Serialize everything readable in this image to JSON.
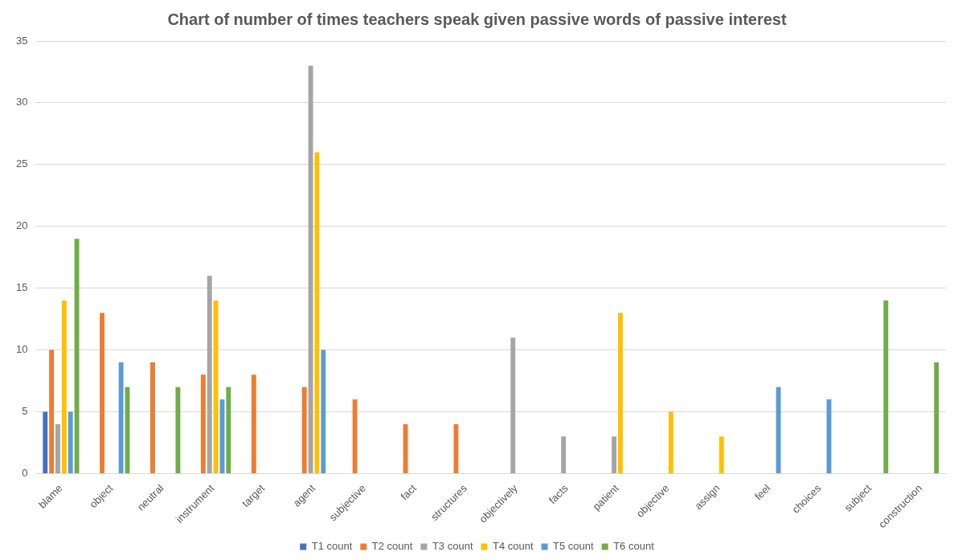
{
  "chart_data": {
    "type": "bar",
    "title": "Chart of number of times teachers speak given passive words of passive interest",
    "categories": [
      "blame",
      "object",
      "neutral",
      "instrument",
      "target",
      "agent",
      "subjective",
      "fact",
      "structures",
      "objectively",
      "facts",
      "patient",
      "objective",
      "assign",
      "feel",
      "choices",
      "subject",
      "construction"
    ],
    "series": [
      {
        "name": "T1 count",
        "color": "#4472c4",
        "values": [
          5,
          null,
          null,
          null,
          null,
          null,
          null,
          null,
          null,
          null,
          null,
          null,
          null,
          null,
          null,
          null,
          null,
          null
        ]
      },
      {
        "name": "T2 count",
        "color": "#ed7d31",
        "values": [
          10,
          13,
          9,
          8,
          8,
          7,
          6,
          4,
          4,
          null,
          null,
          null,
          null,
          null,
          null,
          null,
          null,
          null
        ]
      },
      {
        "name": "T3 count",
        "color": "#a5a5a5",
        "values": [
          4,
          null,
          null,
          16,
          null,
          33,
          null,
          null,
          null,
          11,
          3,
          3,
          null,
          null,
          null,
          null,
          null,
          null
        ]
      },
      {
        "name": "T4 count",
        "color": "#ffc000",
        "values": [
          14,
          null,
          null,
          14,
          null,
          26,
          null,
          null,
          null,
          null,
          null,
          13,
          5,
          3,
          null,
          null,
          null,
          null
        ]
      },
      {
        "name": "T5 count",
        "color": "#5b9bd5",
        "values": [
          5,
          9,
          null,
          6,
          null,
          10,
          null,
          null,
          null,
          null,
          null,
          null,
          null,
          null,
          7,
          6,
          null,
          null
        ]
      },
      {
        "name": "T6 count",
        "color": "#70ad47",
        "values": [
          19,
          7,
          7,
          7,
          null,
          null,
          null,
          null,
          null,
          null,
          null,
          null,
          null,
          null,
          null,
          null,
          14,
          9
        ]
      }
    ],
    "ylim": [
      0,
      35
    ],
    "yticks": [
      0,
      5,
      10,
      15,
      20,
      25,
      30,
      35
    ],
    "grid": "y",
    "legend": "bottom"
  }
}
